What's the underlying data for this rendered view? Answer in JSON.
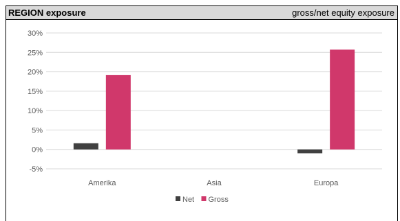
{
  "header": {
    "title": "REGION exposure",
    "subtitle": "gross/net equity exposure"
  },
  "chart_data": {
    "type": "bar",
    "categories": [
      "Amerika",
      "Asia",
      "Europa"
    ],
    "series": [
      {
        "name": "Net",
        "color": "#404040",
        "values": [
          1.6,
          0,
          -1.0
        ]
      },
      {
        "name": "Gross",
        "color": "#d0386b",
        "values": [
          19.2,
          0,
          25.7
        ]
      }
    ],
    "ylim": [
      -5,
      30
    ],
    "yticks": [
      "30%",
      "25%",
      "20%",
      "15%",
      "10%",
      "5%",
      "0%",
      "-5%"
    ],
    "ytick_values": [
      30,
      25,
      20,
      15,
      10,
      5,
      0,
      -5
    ],
    "grid": true,
    "legend": "bottom-center"
  }
}
